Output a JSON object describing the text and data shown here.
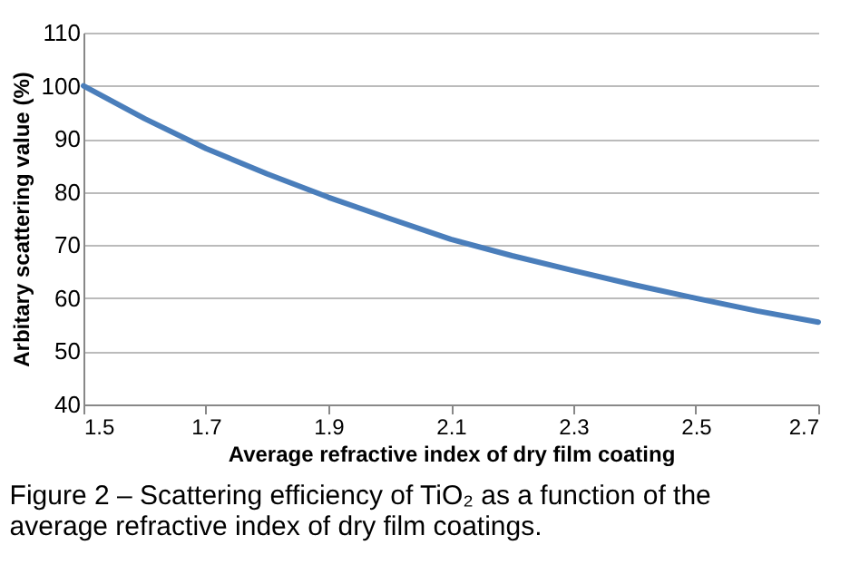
{
  "chart_data": {
    "type": "line",
    "xlabel": "Average refractive index of dry film coating",
    "ylabel": "Arbitary scattering value (%)",
    "x": [
      1.5,
      1.6,
      1.7,
      1.8,
      1.9,
      2.0,
      2.1,
      2.2,
      2.3,
      2.4,
      2.5,
      2.6,
      2.7
    ],
    "series": [
      {
        "color": "#4a7ebb",
        "values": [
          100,
          93.8,
          88.2,
          83.4,
          79.0,
          75.0,
          71.1,
          68.0,
          65.2,
          62.5,
          60.0,
          57.6,
          55.5
        ]
      }
    ],
    "xlim": [
      1.5,
      2.7
    ],
    "xticks": [
      1.5,
      1.7,
      1.9,
      2.1,
      2.3,
      2.5,
      2.7
    ],
    "ylim": [
      40,
      110
    ],
    "yticks": [
      40,
      50,
      60,
      70,
      80,
      90,
      100,
      110
    ],
    "grid": "y",
    "legend": false,
    "marker": "none",
    "line_style": "solid",
    "annotations": [
      "Figure 2 – Scattering efficiency of TiO₂ as a function of the average refractive index of dry film coatings."
    ]
  }
}
